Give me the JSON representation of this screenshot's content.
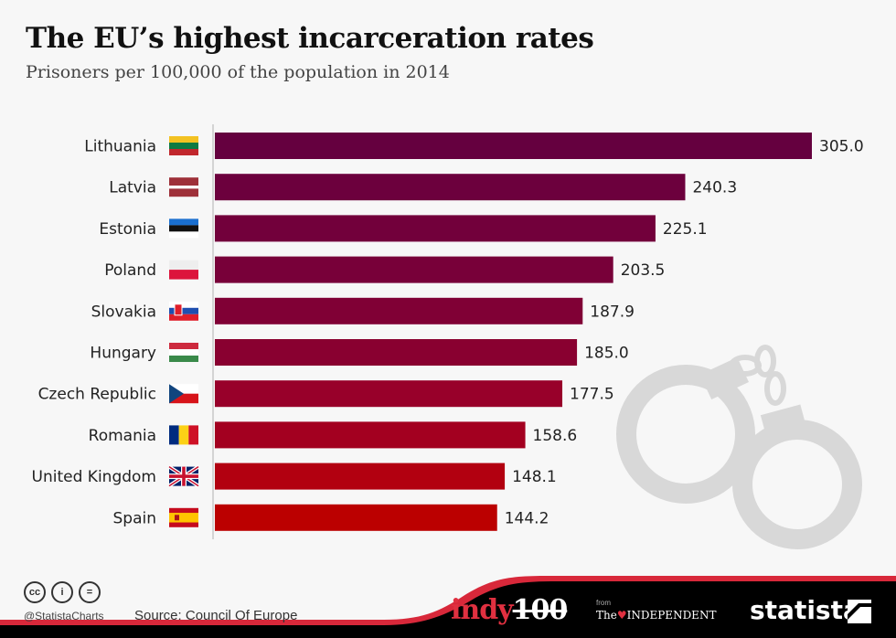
{
  "header": {
    "title": "The EU’s highest incarceration rates",
    "subtitle": "Prisoners per 100,000 of the population in 2014"
  },
  "chart_data": {
    "type": "bar",
    "orientation": "horizontal",
    "title": "The EU’s highest incarceration rates",
    "subtitle": "Prisoners per 100,000 of the population in 2014",
    "xlabel": "",
    "ylabel": "",
    "xlim": [
      0,
      305
    ],
    "grid": false,
    "categories": [
      "Lithuania",
      "Latvia",
      "Estonia",
      "Poland",
      "Slovakia",
      "Hungary",
      "Czech Republic",
      "Romania",
      "United Kingdom",
      "Spain"
    ],
    "values": [
      305.0,
      240.3,
      225.1,
      203.5,
      187.9,
      185.0,
      177.5,
      158.6,
      148.1,
      144.2
    ],
    "value_labels": [
      "305.0",
      "240.3",
      "225.1",
      "203.5",
      "187.9",
      "185.0",
      "177.5",
      "158.6",
      "148.1",
      "144.2"
    ],
    "bar_colors": [
      "#65003f",
      "#6c003d",
      "#72003b",
      "#780039",
      "#800035",
      "#890030",
      "#98002a",
      "#a30020",
      "#b20010",
      "#bb0000"
    ],
    "flags": [
      "lithuania-flag",
      "latvia-flag",
      "estonia-flag",
      "poland-flag",
      "slovakia-flag",
      "hungary-flag",
      "czech-republic-flag",
      "romania-flag",
      "united-kingdom-flag",
      "spain-flag"
    ]
  },
  "footer": {
    "cc_icons": [
      "cc",
      "by",
      "nd"
    ],
    "cc_glyphs": [
      "cc",
      "i",
      "="
    ],
    "handle": "@StatistaCharts",
    "source": "Source: Council Of Europe",
    "logos": {
      "indy_text": "indy",
      "indy_num": "100",
      "from": "from",
      "independent_the": "The",
      "independent_eagle": "♥",
      "independent_name": "INDEPENDENT",
      "statista": "statista"
    },
    "banner_color": "#000000",
    "accent_color": "#e03040"
  }
}
